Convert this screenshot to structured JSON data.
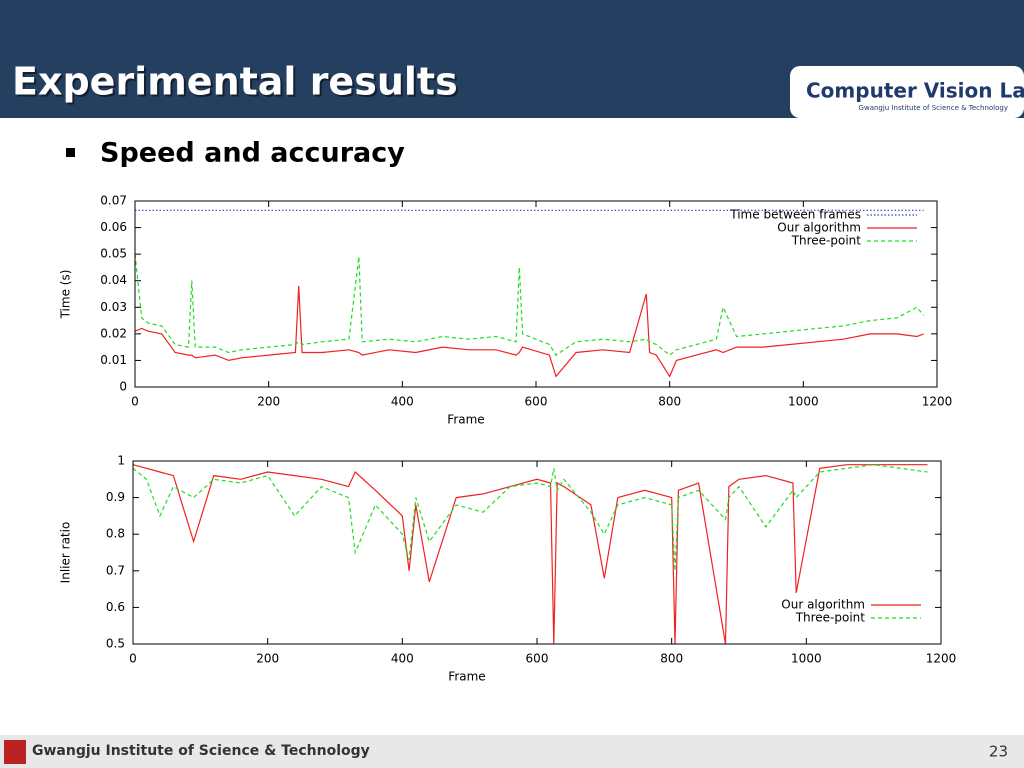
{
  "slide": {
    "title": "Experimental results",
    "logo": "Computer Vision Lab",
    "logo_subtitle": "Gwangju Institute of Science & Technology",
    "bullet": "Speed and accuracy",
    "footer": "Gwangju Institute of Science & Technology",
    "page": "23"
  },
  "chart_data": [
    {
      "type": "line",
      "xlabel": "Frame",
      "ylabel": "Time (s)",
      "legend": "top-right",
      "xlim": [
        0,
        1200
      ],
      "xticks": [
        0,
        200,
        400,
        600,
        800,
        1000,
        1200
      ],
      "ylim": [
        0,
        0.07
      ],
      "yticks": [
        0,
        0.01,
        0.02,
        0.03,
        0.04,
        0.05,
        0.06,
        0.07
      ],
      "x": [
        0,
        10,
        20,
        40,
        60,
        80,
        85,
        90,
        120,
        140,
        160,
        200,
        240,
        245,
        250,
        280,
        320,
        335,
        340,
        380,
        420,
        460,
        500,
        540,
        570,
        575,
        580,
        620,
        630,
        660,
        700,
        740,
        765,
        770,
        780,
        800,
        810,
        840,
        870,
        880,
        900,
        940,
        980,
        1020,
        1060,
        1100,
        1140,
        1170,
        1180
      ],
      "series": [
        {
          "name": "Time between frames",
          "color": "#3344cc",
          "style": "dotted",
          "x": [
            0,
            1180
          ],
          "values": [
            0.0665,
            0.0665
          ]
        },
        {
          "name": "Our algorithm",
          "color": "#ee2222",
          "style": "solid",
          "values": [
            0.021,
            0.022,
            0.021,
            0.02,
            0.013,
            0.012,
            0.012,
            0.011,
            0.012,
            0.01,
            0.011,
            0.012,
            0.013,
            0.038,
            0.013,
            0.013,
            0.014,
            0.013,
            0.012,
            0.014,
            0.013,
            0.015,
            0.014,
            0.014,
            0.012,
            0.013,
            0.015,
            0.012,
            0.004,
            0.013,
            0.014,
            0.013,
            0.035,
            0.013,
            0.012,
            0.004,
            0.01,
            0.012,
            0.014,
            0.013,
            0.015,
            0.015,
            0.016,
            0.017,
            0.018,
            0.02,
            0.02,
            0.019,
            0.02
          ]
        },
        {
          "name": "Three-point",
          "color": "#22dd22",
          "style": "dashed",
          "values": [
            0.05,
            0.026,
            0.024,
            0.023,
            0.016,
            0.015,
            0.04,
            0.015,
            0.015,
            0.013,
            0.014,
            0.015,
            0.016,
            0.017,
            0.016,
            0.017,
            0.018,
            0.049,
            0.017,
            0.018,
            0.017,
            0.019,
            0.018,
            0.019,
            0.017,
            0.045,
            0.02,
            0.016,
            0.012,
            0.017,
            0.018,
            0.017,
            0.018,
            0.017,
            0.016,
            0.012,
            0.014,
            0.016,
            0.018,
            0.03,
            0.019,
            0.02,
            0.021,
            0.022,
            0.023,
            0.025,
            0.026,
            0.03,
            0.027
          ]
        }
      ]
    },
    {
      "type": "line",
      "xlabel": "Frame",
      "ylabel": "Inlier ratio",
      "legend": "bottom-right",
      "xlim": [
        0,
        1200
      ],
      "xticks": [
        0,
        200,
        400,
        600,
        800,
        1000,
        1200
      ],
      "ylim": [
        0.5,
        1
      ],
      "yticks": [
        0.5,
        0.6,
        0.7,
        0.8,
        0.9,
        1
      ],
      "x": [
        0,
        20,
        40,
        60,
        90,
        120,
        160,
        200,
        240,
        280,
        320,
        330,
        360,
        400,
        410,
        420,
        440,
        480,
        520,
        560,
        600,
        620,
        625,
        630,
        640,
        680,
        700,
        720,
        760,
        800,
        805,
        810,
        840,
        880,
        885,
        900,
        940,
        980,
        985,
        1020,
        1060,
        1100,
        1140,
        1180
      ],
      "series": [
        {
          "name": "Our algorithm",
          "color": "#ee2222",
          "style": "solid",
          "values": [
            0.99,
            0.98,
            0.97,
            0.96,
            0.78,
            0.96,
            0.95,
            0.97,
            0.96,
            0.95,
            0.93,
            0.97,
            0.92,
            0.85,
            0.7,
            0.88,
            0.67,
            0.9,
            0.91,
            0.93,
            0.95,
            0.94,
            0.5,
            0.94,
            0.93,
            0.88,
            0.68,
            0.9,
            0.92,
            0.9,
            0.5,
            0.92,
            0.94,
            0.5,
            0.93,
            0.95,
            0.96,
            0.94,
            0.64,
            0.98,
            0.99,
            0.99,
            0.99,
            0.99
          ]
        },
        {
          "name": "Three-point",
          "color": "#22dd22",
          "style": "dashed",
          "values": [
            0.98,
            0.95,
            0.85,
            0.93,
            0.9,
            0.95,
            0.94,
            0.96,
            0.85,
            0.93,
            0.9,
            0.75,
            0.88,
            0.8,
            0.73,
            0.9,
            0.78,
            0.88,
            0.86,
            0.93,
            0.94,
            0.93,
            0.98,
            0.92,
            0.95,
            0.86,
            0.8,
            0.88,
            0.9,
            0.88,
            0.7,
            0.9,
            0.92,
            0.84,
            0.9,
            0.93,
            0.82,
            0.92,
            0.9,
            0.97,
            0.98,
            0.99,
            0.98,
            0.97
          ]
        }
      ]
    }
  ]
}
